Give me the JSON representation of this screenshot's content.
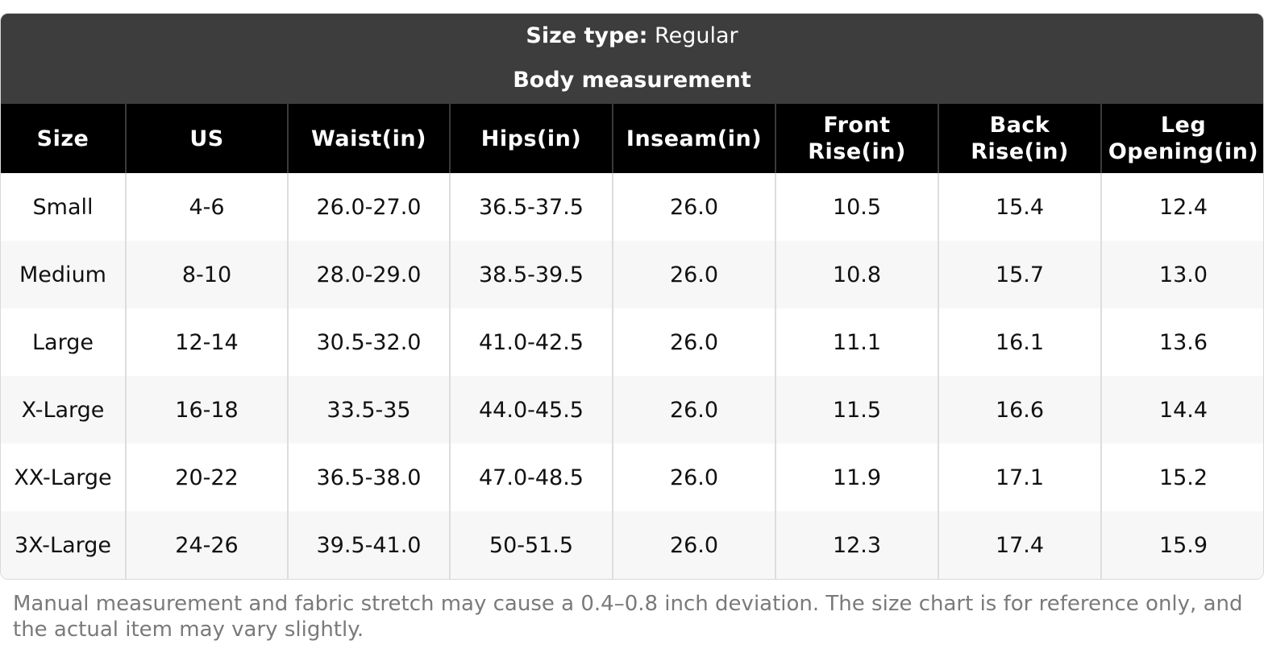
{
  "header": {
    "size_type_label": "Size type:",
    "size_type_value": "Regular",
    "subtitle": "Body measurement"
  },
  "table": {
    "columns": [
      [
        "Size"
      ],
      [
        "US"
      ],
      [
        "Waist(in)"
      ],
      [
        "Hips(in)"
      ],
      [
        "Inseam(in)"
      ],
      [
        "Front",
        "Rise(in)"
      ],
      [
        "Back",
        "Rise(in)"
      ],
      [
        "Leg",
        "Opening(in)"
      ]
    ],
    "rows": [
      [
        "Small",
        "4-6",
        "26.0-27.0",
        "36.5-37.5",
        "26.0",
        "10.5",
        "15.4",
        "12.4"
      ],
      [
        "Medium",
        "8-10",
        "28.0-29.0",
        "38.5-39.5",
        "26.0",
        "10.8",
        "15.7",
        "13.0"
      ],
      [
        "Large",
        "12-14",
        "30.5-32.0",
        "41.0-42.5",
        "26.0",
        "11.1",
        "16.1",
        "13.6"
      ],
      [
        "X-Large",
        "16-18",
        "33.5-35",
        "44.0-45.5",
        "26.0",
        "11.5",
        "16.6",
        "14.4"
      ],
      [
        "XX-Large",
        "20-22",
        "36.5-38.0",
        "47.0-48.5",
        "26.0",
        "11.9",
        "17.1",
        "15.2"
      ],
      [
        "3X-Large",
        "24-26",
        "39.5-41.0",
        "50-51.5",
        "26.0",
        "12.3",
        "17.4",
        "15.9"
      ]
    ]
  },
  "footnote": "Manual measurement and fabric stretch may cause a 0.4–0.8 inch deviation. The size chart is for reference only, and the actual item may vary slightly.",
  "colors": {
    "banner": "#3d3d3d",
    "header_row": "#000000",
    "row_alt": "#f7f7f7",
    "footnote": "#7a7a7a"
  }
}
